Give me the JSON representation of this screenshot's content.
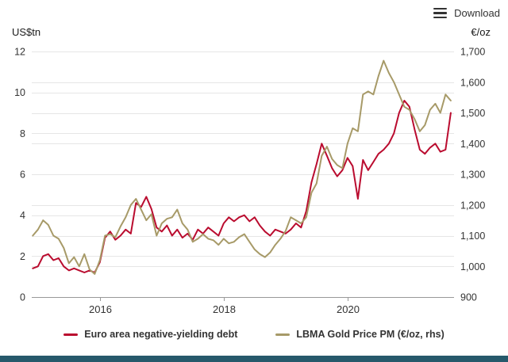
{
  "toolbar": {
    "download_label": "Download"
  },
  "footer_bar": {
    "color": "#26596b"
  },
  "chart_data": {
    "type": "line",
    "title": "",
    "legend_position": "bottom",
    "grid": true,
    "axes": {
      "left": {
        "label": "US$tn",
        "min": 0,
        "max": 12,
        "ticks": [
          0,
          2,
          4,
          6,
          8,
          10,
          12
        ]
      },
      "right": {
        "label": "€/oz",
        "min": 900,
        "max": 1700,
        "ticks": [
          900,
          1000,
          1100,
          1200,
          1300,
          1400,
          1500,
          1600,
          1700
        ]
      },
      "x": {
        "min": 2014.9,
        "max": 2021.72,
        "ticks": [
          2016,
          2018,
          2020
        ]
      }
    },
    "x": [
      2014.917,
      2015,
      2015.083,
      2015.167,
      2015.25,
      2015.333,
      2015.417,
      2015.5,
      2015.583,
      2015.667,
      2015.75,
      2015.833,
      2015.917,
      2016,
      2016.083,
      2016.167,
      2016.25,
      2016.333,
      2016.417,
      2016.5,
      2016.583,
      2016.667,
      2016.75,
      2016.833,
      2016.917,
      2017,
      2017.083,
      2017.167,
      2017.25,
      2017.333,
      2017.417,
      2017.5,
      2017.583,
      2017.667,
      2017.75,
      2017.833,
      2017.917,
      2018,
      2018.083,
      2018.167,
      2018.25,
      2018.333,
      2018.417,
      2018.5,
      2018.583,
      2018.667,
      2018.75,
      2018.833,
      2018.917,
      2019,
      2019.083,
      2019.167,
      2019.25,
      2019.333,
      2019.417,
      2019.5,
      2019.583,
      2019.667,
      2019.75,
      2019.833,
      2019.917,
      2020,
      2020.083,
      2020.167,
      2020.25,
      2020.333,
      2020.417,
      2020.5,
      2020.583,
      2020.667,
      2020.75,
      2020.833,
      2020.917,
      2021,
      2021.083,
      2021.167,
      2021.25,
      2021.333,
      2021.417,
      2021.5,
      2021.583,
      2021.667
    ],
    "series": [
      {
        "name": "Euro area negative-yielding debt",
        "axis": "left",
        "unit": "US$tn",
        "color": "#ba0c2f",
        "values": [
          1.4,
          1.5,
          2.0,
          2.1,
          1.8,
          1.9,
          1.5,
          1.3,
          1.4,
          1.3,
          1.2,
          1.3,
          1.2,
          1.7,
          2.9,
          3.2,
          2.8,
          3.0,
          3.3,
          3.1,
          4.6,
          4.4,
          4.9,
          4.3,
          3.4,
          3.2,
          3.5,
          3.0,
          3.3,
          2.9,
          3.1,
          2.8,
          3.3,
          3.1,
          3.4,
          3.2,
          3.0,
          3.6,
          3.9,
          3.7,
          3.9,
          4.0,
          3.7,
          3.9,
          3.5,
          3.2,
          3.0,
          3.3,
          3.2,
          3.1,
          3.3,
          3.6,
          3.4,
          4.2,
          5.6,
          6.5,
          7.5,
          6.9,
          6.3,
          5.9,
          6.2,
          6.8,
          6.4,
          4.8,
          6.7,
          6.2,
          6.6,
          7.0,
          7.2,
          7.5,
          8.0,
          9.0,
          9.6,
          9.3,
          8.2,
          7.2,
          7.0,
          7.3,
          7.5,
          7.1,
          7.2,
          9.0
        ]
      },
      {
        "name": "LBMA Gold Price PM (€/oz, rhs)",
        "axis": "right",
        "unit": "€/oz",
        "color": "#a79a68",
        "values": [
          1100,
          1120,
          1150,
          1135,
          1100,
          1090,
          1060,
          1010,
          1030,
          1000,
          1040,
          990,
          975,
          1020,
          1100,
          1105,
          1095,
          1130,
          1160,
          1200,
          1220,
          1185,
          1150,
          1170,
          1100,
          1140,
          1155,
          1160,
          1185,
          1140,
          1120,
          1080,
          1090,
          1105,
          1090,
          1085,
          1070,
          1090,
          1075,
          1080,
          1095,
          1105,
          1080,
          1055,
          1040,
          1030,
          1045,
          1070,
          1090,
          1115,
          1160,
          1150,
          1140,
          1160,
          1240,
          1270,
          1360,
          1390,
          1350,
          1330,
          1320,
          1400,
          1450,
          1440,
          1560,
          1570,
          1560,
          1620,
          1670,
          1630,
          1600,
          1560,
          1520,
          1510,
          1480,
          1440,
          1460,
          1510,
          1530,
          1500,
          1560,
          1540
        ]
      }
    ]
  }
}
